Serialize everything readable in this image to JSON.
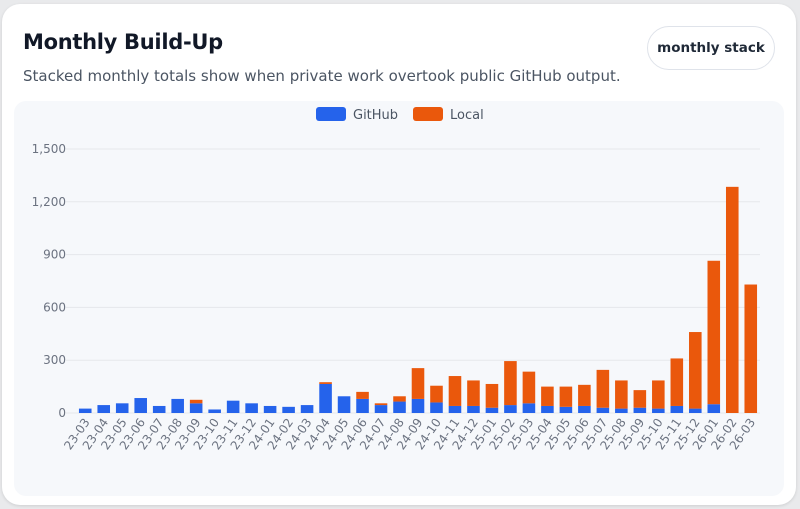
{
  "header": {
    "title": "Monthly Build-Up",
    "subtitle": "Stacked monthly totals show when private work overtook public GitHub output.",
    "mode_badge": "monthly stack"
  },
  "colors": {
    "github": "#2563eb",
    "local": "#ea580c",
    "grid": "#e5e7eb",
    "axis_text": "#6b7280"
  },
  "chart_data": {
    "type": "bar",
    "stacked": true,
    "title": "",
    "xlabel": "",
    "ylabel": "",
    "ylim": [
      0,
      1500
    ],
    "yticks": [
      0,
      300,
      600,
      900,
      1200,
      1500
    ],
    "ytick_labels": [
      "0",
      "300",
      "600",
      "900",
      "1,200",
      "1,500"
    ],
    "legend": {
      "position": "top-center"
    },
    "categories": [
      "23-03",
      "23-04",
      "23-05",
      "23-06",
      "23-07",
      "23-08",
      "23-09",
      "23-10",
      "23-11",
      "23-12",
      "24-01",
      "24-02",
      "24-03",
      "24-04",
      "24-05",
      "24-06",
      "24-07",
      "24-08",
      "24-09",
      "24-10",
      "24-11",
      "24-12",
      "25-01",
      "25-02",
      "25-03",
      "25-04",
      "25-05",
      "25-06",
      "25-07",
      "25-08",
      "25-09",
      "25-10",
      "25-11",
      "25-12",
      "26-01",
      "26-02",
      "26-03"
    ],
    "series": [
      {
        "name": "GitHub",
        "values": [
          25,
          45,
          55,
          85,
          40,
          80,
          55,
          20,
          70,
          55,
          40,
          35,
          45,
          165,
          95,
          80,
          45,
          65,
          80,
          60,
          40,
          40,
          30,
          45,
          55,
          40,
          35,
          40,
          30,
          25,
          30,
          25,
          40,
          25,
          50,
          0,
          0
        ]
      },
      {
        "name": "Local",
        "values": [
          0,
          0,
          0,
          0,
          0,
          0,
          20,
          0,
          0,
          0,
          0,
          0,
          0,
          10,
          0,
          40,
          10,
          30,
          175,
          95,
          170,
          145,
          135,
          250,
          180,
          110,
          115,
          120,
          215,
          160,
          100,
          160,
          270,
          435,
          815,
          1285,
          730
        ]
      }
    ]
  }
}
